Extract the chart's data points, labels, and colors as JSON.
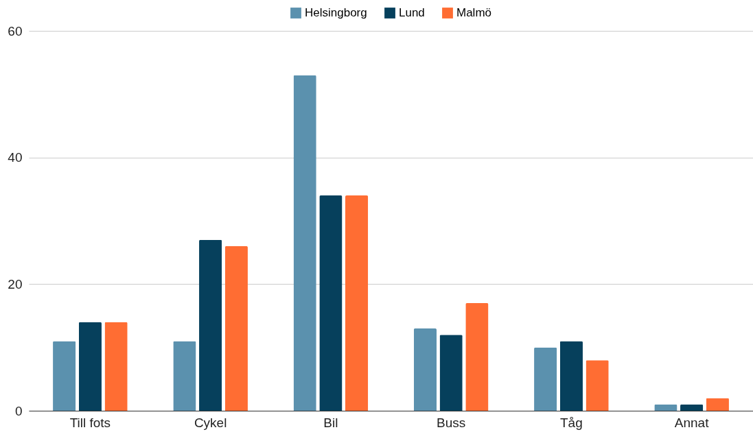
{
  "chart_data": {
    "type": "bar",
    "categories": [
      "Till fots",
      "Cykel",
      "Bil",
      "Buss",
      "Tåg",
      "Annat"
    ],
    "series": [
      {
        "name": "Helsingborg",
        "color": "#5b91ae",
        "values": [
          11,
          11,
          53,
          13,
          10,
          1
        ]
      },
      {
        "name": "Lund",
        "color": "#06405c",
        "values": [
          14,
          27,
          34,
          12,
          11,
          1
        ]
      },
      {
        "name": "Malmö",
        "color": "#ff6d33",
        "values": [
          14,
          26,
          34,
          17,
          8,
          2
        ]
      }
    ],
    "ylim": [
      0,
      60
    ],
    "yticks": [
      0,
      20,
      40,
      60
    ],
    "grid": "y",
    "legend": "top"
  }
}
